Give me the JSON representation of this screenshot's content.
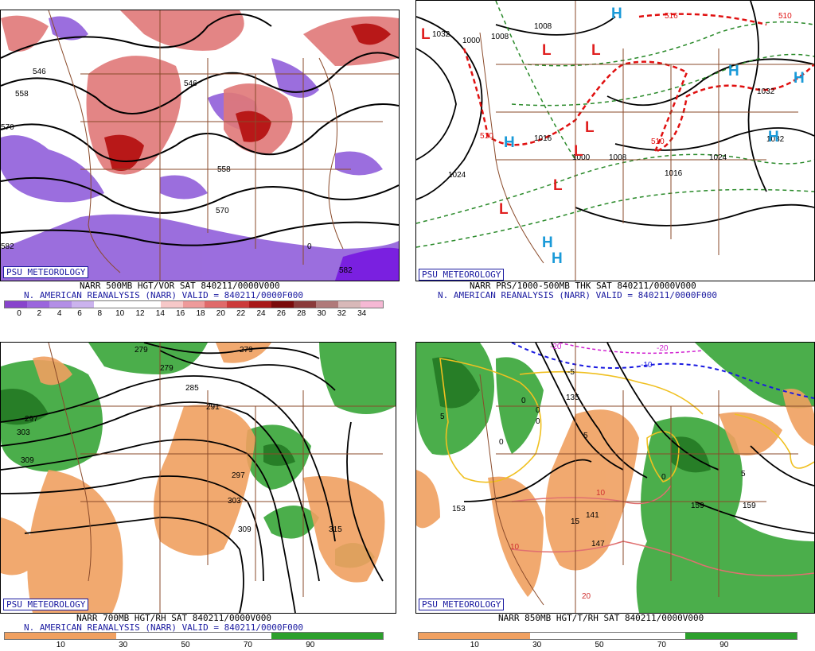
{
  "panels": [
    {
      "badge": "PSU METEOROLOGY",
      "caption1": "NARR 500MB HGT/VOR SAT 840211/0000V000",
      "caption2": "N. AMERICAN REANALYSIS (NARR) VALID = 840211/0000F000",
      "colorbar": {
        "colors": [
          "#8844cc",
          "#9b66dd",
          "#b38ee6",
          "#cbb3ee",
          "#ffffff",
          "#ffffff",
          "#ffffff",
          "#f6c8c8",
          "#ee9a9a",
          "#e06a6a",
          "#cc3a3a",
          "#a81818",
          "#7a0a0a",
          "#8a3a3a",
          "#b07a7a",
          "#d8b8b8",
          "#f5b8d4"
        ],
        "ticks": [
          "0",
          "2",
          "4",
          "6",
          "8",
          "10",
          "12",
          "14",
          "16",
          "18",
          "20",
          "22",
          "24",
          "26",
          "28",
          "30",
          "32",
          "34"
        ]
      },
      "contour_labels": [
        "546",
        "558",
        "546",
        "558",
        "570",
        "582",
        "570",
        "582",
        "0"
      ]
    },
    {
      "badge": "PSU METEOROLOGY",
      "caption1": "NARR PRS/1000-500MB THK SAT 840211/0000V000",
      "caption2": "N. AMERICAN REANALYSIS (NARR) VALID = 840211/0000F000",
      "contour_labels": [
        "1032",
        "1000",
        "1008",
        "1008",
        "1024",
        "1016",
        "1000",
        "1008",
        "1016",
        "1024",
        "1032",
        "1032",
        "510",
        "510",
        "510",
        "516"
      ],
      "centers": [
        {
          "t": "L",
          "c": "#e02020"
        },
        {
          "t": "L",
          "c": "#e02020"
        },
        {
          "t": "L",
          "c": "#e02020"
        },
        {
          "t": "L",
          "c": "#e02020"
        },
        {
          "t": "L",
          "c": "#e02020"
        },
        {
          "t": "L",
          "c": "#e02020"
        },
        {
          "t": "L",
          "c": "#e02020"
        },
        {
          "t": "H",
          "c": "#1a9ad8"
        },
        {
          "t": "H",
          "c": "#1a9ad8"
        },
        {
          "t": "H",
          "c": "#1a9ad8"
        },
        {
          "t": "H",
          "c": "#1a9ad8"
        },
        {
          "t": "H",
          "c": "#1a9ad8"
        },
        {
          "t": "H",
          "c": "#1a9ad8"
        },
        {
          "t": "H",
          "c": "#1a9ad8"
        }
      ]
    },
    {
      "badge": "PSU METEOROLOGY",
      "caption1": "NARR 700MB HGT/RH SAT 840211/0000V000",
      "caption2": "N. AMERICAN REANALYSIS (NARR) VALID = 840211/0000F000",
      "colorbar": {
        "colors": [
          "#f0a060",
          "#f0a060",
          "#f0a060",
          "#f0a060",
          "#f0a060",
          "#ffffff",
          "#ffffff",
          "#ffffff",
          "#ffffff",
          "#ffffff",
          "#ffffff",
          "#ffffff",
          "#2ca02c",
          "#2ca02c",
          "#2ca02c",
          "#2ca02c",
          "#2ca02c"
        ],
        "ticks": [
          "10",
          "30",
          "50",
          "70",
          "90"
        ]
      },
      "contour_labels": [
        "279",
        "279",
        "279",
        "285",
        "291",
        "297",
        "303",
        "309",
        "297",
        "303",
        "309",
        "315"
      ]
    },
    {
      "badge": "PSU METEOROLOGY",
      "caption1": "NARR 850MB HGT/T/RH SAT 840211/0000V000",
      "colorbar": {
        "colors": [
          "#f0a060",
          "#f0a060",
          "#f0a060",
          "#f0a060",
          "#f0a060",
          "#ffffff",
          "#ffffff",
          "#ffffff",
          "#ffffff",
          "#ffffff",
          "#ffffff",
          "#ffffff",
          "#2ca02c",
          "#2ca02c",
          "#2ca02c",
          "#2ca02c",
          "#2ca02c"
        ],
        "ticks": [
          "10",
          "30",
          "50",
          "70",
          "90"
        ]
      },
      "contour_labels": [
        "135",
        "141",
        "147",
        "153",
        "159",
        "159"
      ],
      "temp_labels": [
        "-20",
        "-20",
        "-10",
        "-5",
        "5",
        "5",
        "5",
        "0",
        "0",
        "0",
        "0",
        "0",
        "10",
        "10",
        "15",
        "20"
      ]
    }
  ]
}
